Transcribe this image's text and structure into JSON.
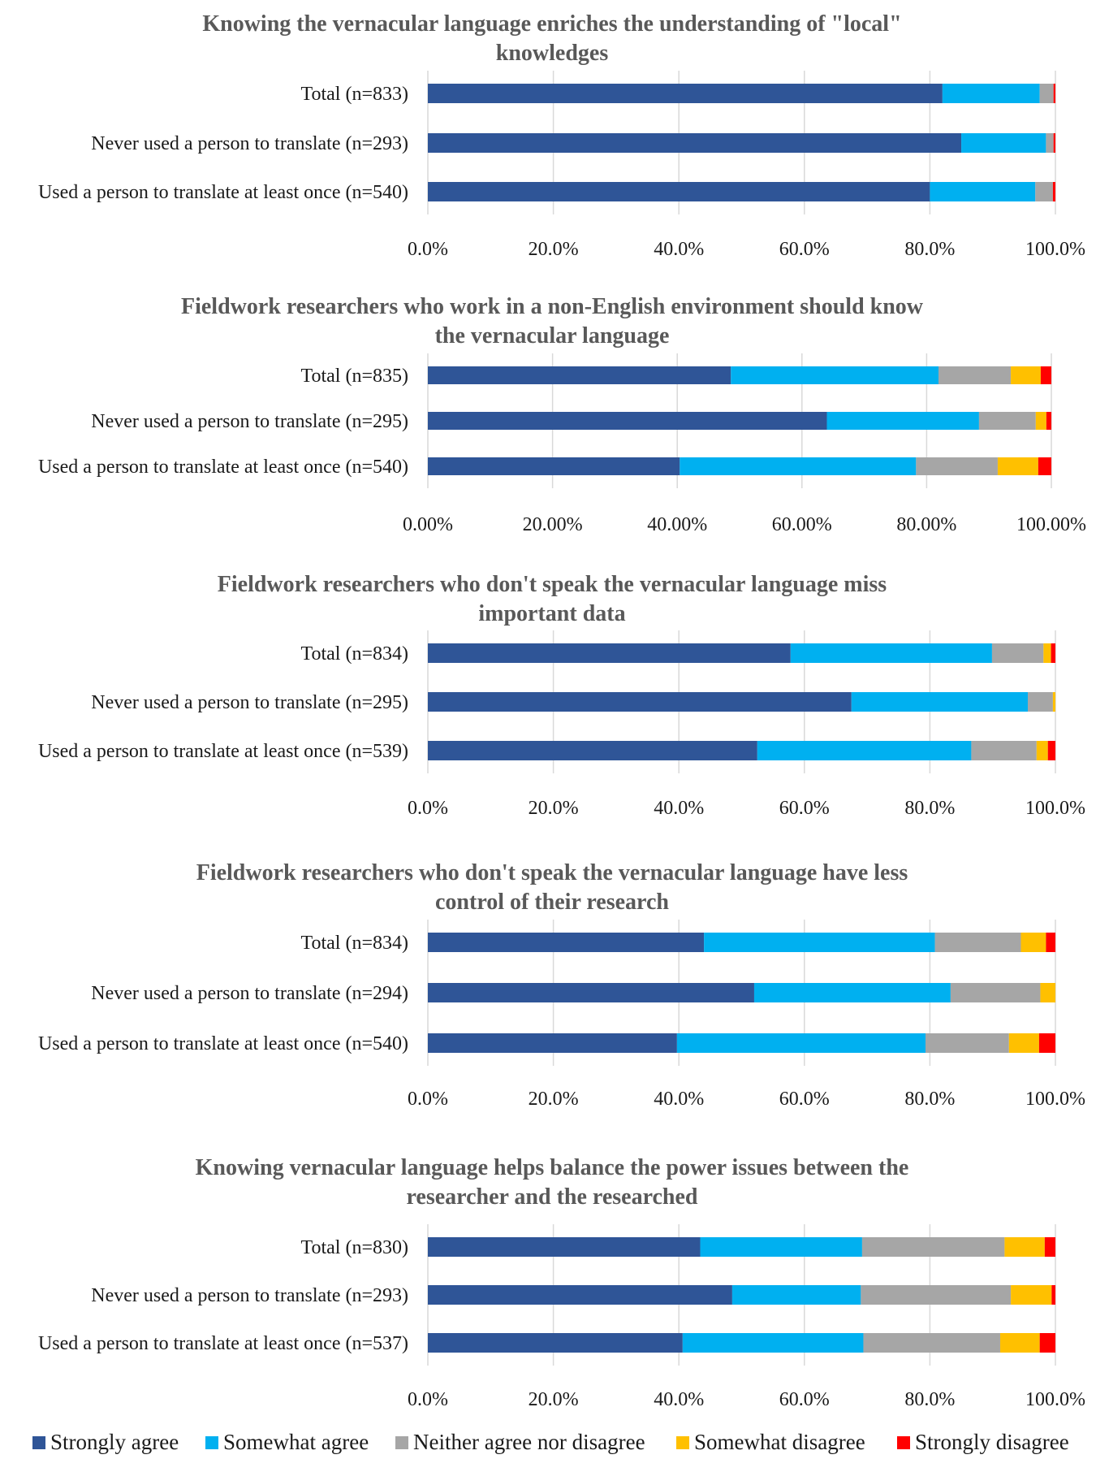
{
  "colors": {
    "Strongly agree": "#2f5597",
    "Somewhat agree": "#00b0f0",
    "Neither agree nor disagree": "#a6a6a6",
    "Somewhat disagree": "#ffc000",
    "Strongly disagree": "#ff0000"
  },
  "legend": {
    "items": [
      "Strongly agree",
      "Somewhat agree",
      "Neither agree nor disagree",
      "Somewhat disagree",
      "Strongly disagree"
    ]
  },
  "chart_data": [
    {
      "type": "bar",
      "orientation": "horizontal",
      "stacked": true,
      "title_lines": [
        "Knowing the vernacular language enriches the understanding of \"local\"",
        "knowledges"
      ],
      "categories": [
        "Total (n=833)",
        "Never used a person to translate (n=293)",
        "Used a person to translate at least once (n=540)"
      ],
      "series": [
        {
          "name": "Strongly agree",
          "values": [
            82.0,
            85.0,
            80.0
          ]
        },
        {
          "name": "Somewhat agree",
          "values": [
            15.5,
            13.5,
            16.8
          ]
        },
        {
          "name": "Neither agree nor disagree",
          "values": [
            2.2,
            1.2,
            2.8
          ]
        },
        {
          "name": "Somewhat disagree",
          "values": [
            0.0,
            0.0,
            0.0
          ]
        },
        {
          "name": "Strongly disagree",
          "values": [
            0.3,
            0.3,
            0.4
          ]
        }
      ],
      "xlim": [
        0,
        100
      ],
      "xticks": [
        "0.0%",
        "20.0%",
        "40.0%",
        "60.0%",
        "80.0%",
        "100.0%"
      ]
    },
    {
      "type": "bar",
      "orientation": "horizontal",
      "stacked": true,
      "title_lines": [
        "Fieldwork researchers who work in a non-English environment should know",
        "the vernacular language"
      ],
      "categories": [
        "Total (n=835)",
        "Never used a person to translate (n=295)",
        "Used a person to translate at least once (n=540)"
      ],
      "series": [
        {
          "name": "Strongly agree",
          "values": [
            48.6,
            64.0,
            40.4
          ]
        },
        {
          "name": "Somewhat agree",
          "values": [
            33.3,
            24.4,
            37.9
          ]
        },
        {
          "name": "Neither agree nor disagree",
          "values": [
            11.6,
            9.1,
            13.1
          ]
        },
        {
          "name": "Somewhat disagree",
          "values": [
            4.8,
            1.7,
            6.5
          ]
        },
        {
          "name": "Strongly disagree",
          "values": [
            1.7,
            0.8,
            2.1
          ]
        }
      ],
      "xlim": [
        0,
        100
      ],
      "xticks": [
        "0.00%",
        "20.00%",
        "40.00%",
        "60.00%",
        "80.00%",
        "100.00%"
      ]
    },
    {
      "type": "bar",
      "orientation": "horizontal",
      "stacked": true,
      "title_lines": [
        "Fieldwork researchers who don't speak the vernacular language miss",
        "important data"
      ],
      "categories": [
        "Total (n=834)",
        "Never used a person to translate (n=295)",
        "Used a person to translate at least once (n=539)"
      ],
      "series": [
        {
          "name": "Strongly agree",
          "values": [
            57.8,
            67.5,
            52.5
          ]
        },
        {
          "name": "Somewhat agree",
          "values": [
            32.1,
            28.1,
            34.1
          ]
        },
        {
          "name": "Neither agree nor disagree",
          "values": [
            8.2,
            4.0,
            10.4
          ]
        },
        {
          "name": "Somewhat disagree",
          "values": [
            1.2,
            0.4,
            1.8
          ]
        },
        {
          "name": "Strongly disagree",
          "values": [
            0.7,
            0.0,
            1.2
          ]
        }
      ],
      "xlim": [
        0,
        100
      ],
      "xticks": [
        "0.0%",
        "20.0%",
        "40.0%",
        "60.0%",
        "80.0%",
        "100.0%"
      ]
    },
    {
      "type": "bar",
      "orientation": "horizontal",
      "stacked": true,
      "title_lines": [
        "Fieldwork researchers who don't speak the vernacular language have less",
        "control of their research"
      ],
      "categories": [
        "Total (n=834)",
        "Never used a person to translate (n=294)",
        "Used a person to translate at least once (n=540)"
      ],
      "series": [
        {
          "name": "Strongly agree",
          "values": [
            44.0,
            52.0,
            39.7
          ]
        },
        {
          "name": "Somewhat agree",
          "values": [
            36.8,
            31.3,
            39.6
          ]
        },
        {
          "name": "Neither agree nor disagree",
          "values": [
            13.7,
            14.3,
            13.3
          ]
        },
        {
          "name": "Somewhat disagree",
          "values": [
            4.0,
            2.4,
            4.8
          ]
        },
        {
          "name": "Strongly disagree",
          "values": [
            1.5,
            0.0,
            2.6
          ]
        }
      ],
      "xlim": [
        0,
        100
      ],
      "xticks": [
        "0.0%",
        "20.0%",
        "40.0%",
        "60.0%",
        "80.0%",
        "100.0%"
      ]
    },
    {
      "type": "bar",
      "orientation": "horizontal",
      "stacked": true,
      "title_lines": [
        "Knowing vernacular language helps balance the power issues between the",
        "researcher and the researched"
      ],
      "categories": [
        "Total (n=830)",
        "Never used a person to translate (n=293)",
        "Used a person to translate at least once (n=537)"
      ],
      "series": [
        {
          "name": "Strongly agree",
          "values": [
            43.4,
            48.5,
            40.6
          ]
        },
        {
          "name": "Somewhat agree",
          "values": [
            25.8,
            20.5,
            28.8
          ]
        },
        {
          "name": "Neither agree nor disagree",
          "values": [
            22.7,
            23.9,
            21.8
          ]
        },
        {
          "name": "Somewhat disagree",
          "values": [
            6.4,
            6.5,
            6.3
          ]
        },
        {
          "name": "Strongly disagree",
          "values": [
            1.7,
            0.6,
            2.5
          ]
        }
      ],
      "xlim": [
        0,
        100
      ],
      "xticks": [
        "0.0%",
        "20.0%",
        "40.0%",
        "60.0%",
        "80.0%",
        "100.0%"
      ]
    }
  ]
}
